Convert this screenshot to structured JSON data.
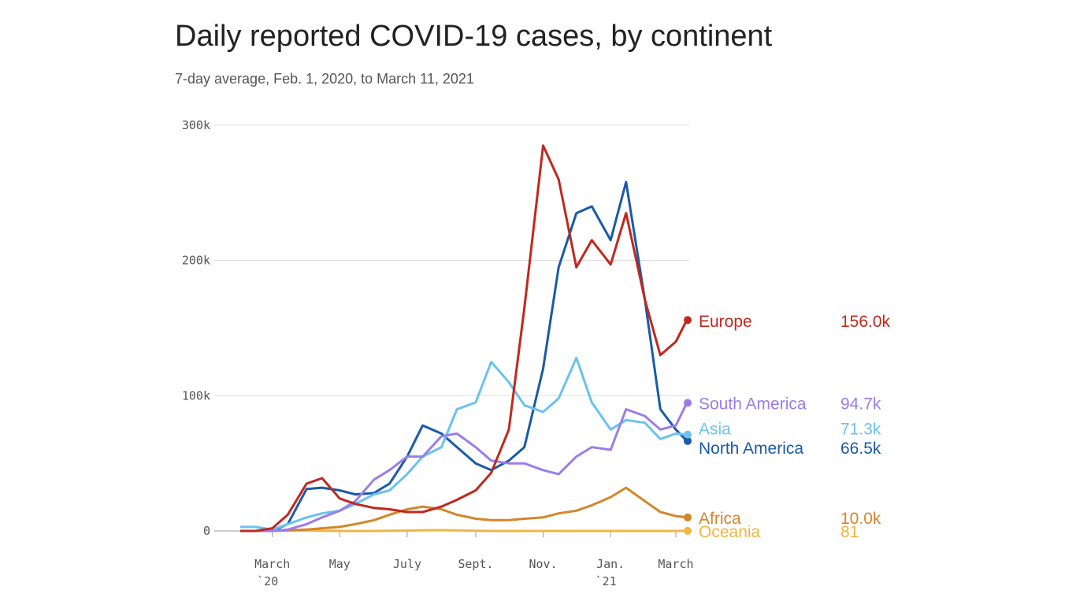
{
  "chart_data": {
    "type": "line",
    "title": "Daily reported COVID-19 cases, by continent",
    "subtitle": "7-day average, Feb. 1, 2020, to March 11, 2021",
    "x": [
      "2020-02-01",
      "2020-02-15",
      "2020-03-01",
      "2020-03-15",
      "2020-04-01",
      "2020-04-15",
      "2020-05-01",
      "2020-05-15",
      "2020-06-01",
      "2020-06-15",
      "2020-07-01",
      "2020-07-15",
      "2020-08-01",
      "2020-08-15",
      "2020-09-01",
      "2020-09-15",
      "2020-10-01",
      "2020-10-15",
      "2020-11-01",
      "2020-11-15",
      "2020-12-01",
      "2020-12-15",
      "2021-01-01",
      "2021-01-15",
      "2021-02-01",
      "2021-02-15",
      "2021-03-01",
      "2021-03-11"
    ],
    "xlim": [
      "2020-02-01",
      "2021-03-11"
    ],
    "xticks": [
      {
        "value": "2020-03-01",
        "label": "March",
        "sublabel": "`20"
      },
      {
        "value": "2020-05-01",
        "label": "May"
      },
      {
        "value": "2020-07-01",
        "label": "July"
      },
      {
        "value": "2020-09-01",
        "label": "Sept."
      },
      {
        "value": "2020-11-01",
        "label": "Nov."
      },
      {
        "value": "2021-01-01",
        "label": "Jan.",
        "sublabel": "`21"
      },
      {
        "value": "2021-03-01",
        "label": "March"
      }
    ],
    "ylim": [
      0,
      300000
    ],
    "yticks": [
      {
        "value": 0,
        "label": "0"
      },
      {
        "value": 100000,
        "label": "100k"
      },
      {
        "value": 200000,
        "label": "200k"
      },
      {
        "value": 300000,
        "label": "300k"
      }
    ],
    "grid": true,
    "series": [
      {
        "name": "Europe",
        "color": "#c0281e",
        "values": [
          0,
          0,
          2000,
          12000,
          35000,
          39000,
          24000,
          20000,
          17000,
          16000,
          14000,
          14000,
          18000,
          23000,
          30000,
          43000,
          75000,
          165000,
          285000,
          260000,
          195000,
          215000,
          197000,
          235000,
          171000,
          130000,
          140000,
          156000
        ],
        "value_labels": [
          null,
          null,
          null,
          null,
          null,
          null,
          null,
          null,
          null,
          null,
          null,
          null,
          null,
          null,
          null,
          null,
          null,
          null,
          null,
          null,
          null,
          null,
          null,
          null,
          null,
          null,
          null,
          "156.0k"
        ]
      },
      {
        "name": "South America",
        "color": "#9b7de8",
        "values": [
          0,
          0,
          0,
          1000,
          5000,
          10000,
          15000,
          22000,
          38000,
          45000,
          55000,
          55000,
          70000,
          72000,
          62000,
          52000,
          50000,
          50000,
          45000,
          42000,
          55000,
          62000,
          60000,
          90000,
          85000,
          75000,
          78000,
          94700
        ],
        "value_labels": [
          null,
          null,
          null,
          null,
          null,
          null,
          null,
          null,
          null,
          null,
          null,
          null,
          null,
          null,
          null,
          null,
          null,
          null,
          null,
          null,
          null,
          null,
          null,
          null,
          null,
          null,
          null,
          "94.7k"
        ]
      },
      {
        "name": "Asia",
        "color": "#6ac2f0",
        "values": [
          3000,
          3000,
          1000,
          5000,
          10000,
          13000,
          15000,
          20000,
          27000,
          30000,
          42000,
          55000,
          62000,
          90000,
          95000,
          125000,
          110000,
          93000,
          88000,
          98000,
          128000,
          95000,
          75000,
          82000,
          80000,
          68000,
          72000,
          71300
        ],
        "value_labels": [
          null,
          null,
          null,
          null,
          null,
          null,
          null,
          null,
          null,
          null,
          null,
          null,
          null,
          null,
          null,
          null,
          null,
          null,
          null,
          null,
          null,
          null,
          null,
          null,
          null,
          null,
          null,
          "71.3k"
        ]
      },
      {
        "name": "North America",
        "color": "#1a5aa8",
        "values": [
          0,
          0,
          0,
          5000,
          31000,
          32000,
          30000,
          27000,
          28000,
          35000,
          55000,
          78000,
          72000,
          62000,
          50000,
          45000,
          52000,
          62000,
          120000,
          195000,
          235000,
          240000,
          215000,
          258000,
          171000,
          90000,
          75000,
          66500
        ],
        "value_labels": [
          null,
          null,
          null,
          null,
          null,
          null,
          null,
          null,
          null,
          null,
          null,
          null,
          null,
          null,
          null,
          null,
          null,
          null,
          null,
          null,
          null,
          null,
          null,
          null,
          null,
          null,
          null,
          "66.5k"
        ]
      },
      {
        "name": "Africa",
        "color": "#d4862a",
        "values": [
          0,
          0,
          0,
          500,
          1000,
          2000,
          3000,
          5000,
          8000,
          12000,
          16000,
          18000,
          16000,
          12000,
          9000,
          8000,
          8000,
          9000,
          10000,
          13000,
          15000,
          19000,
          25000,
          32000,
          22000,
          14000,
          11000,
          10000
        ],
        "value_labels": [
          null,
          null,
          null,
          null,
          null,
          null,
          null,
          null,
          null,
          null,
          null,
          null,
          null,
          null,
          null,
          null,
          null,
          null,
          null,
          null,
          null,
          null,
          null,
          null,
          null,
          null,
          null,
          "10.0k"
        ]
      },
      {
        "name": "Oceania",
        "color": "#f0b545",
        "values": [
          0,
          10,
          50,
          300,
          400,
          100,
          20,
          15,
          20,
          100,
          300,
          500,
          600,
          400,
          100,
          20,
          15,
          15,
          10,
          15,
          20,
          20,
          20,
          15,
          10,
          10,
          10,
          81
        ],
        "value_labels": [
          null,
          null,
          null,
          null,
          null,
          null,
          null,
          null,
          null,
          null,
          null,
          null,
          null,
          null,
          null,
          null,
          null,
          null,
          null,
          null,
          null,
          null,
          null,
          null,
          null,
          null,
          null,
          "81"
        ]
      }
    ]
  }
}
